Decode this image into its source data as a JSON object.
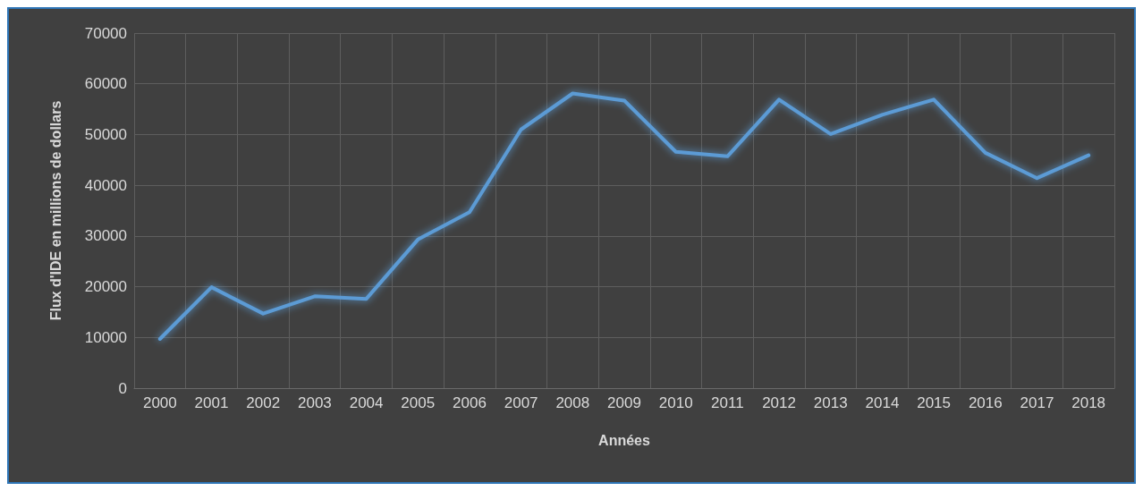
{
  "chart_data": {
    "type": "line",
    "xlabel": "Années",
    "ylabel": "Flux d'IDE en millions de dollars",
    "categories": [
      "2000",
      "2001",
      "2002",
      "2003",
      "2004",
      "2005",
      "2006",
      "2007",
      "2008",
      "2009",
      "2010",
      "2011",
      "2012",
      "2013",
      "2014",
      "2015",
      "2016",
      "2017",
      "2018"
    ],
    "series": [
      {
        "color": "#5b9bd5",
        "values": [
          9700,
          19900,
          14700,
          18100,
          17600,
          29300,
          34700,
          51000,
          58100,
          56700,
          46600,
          45700,
          56900,
          50100,
          53900,
          56900,
          46400,
          41400,
          45900
        ]
      }
    ],
    "ylim": [
      0,
      70000
    ],
    "yticks": [
      0,
      10000,
      20000,
      30000,
      40000,
      50000,
      60000,
      70000
    ],
    "grid": true,
    "marker": "none",
    "line_style": "solid"
  }
}
